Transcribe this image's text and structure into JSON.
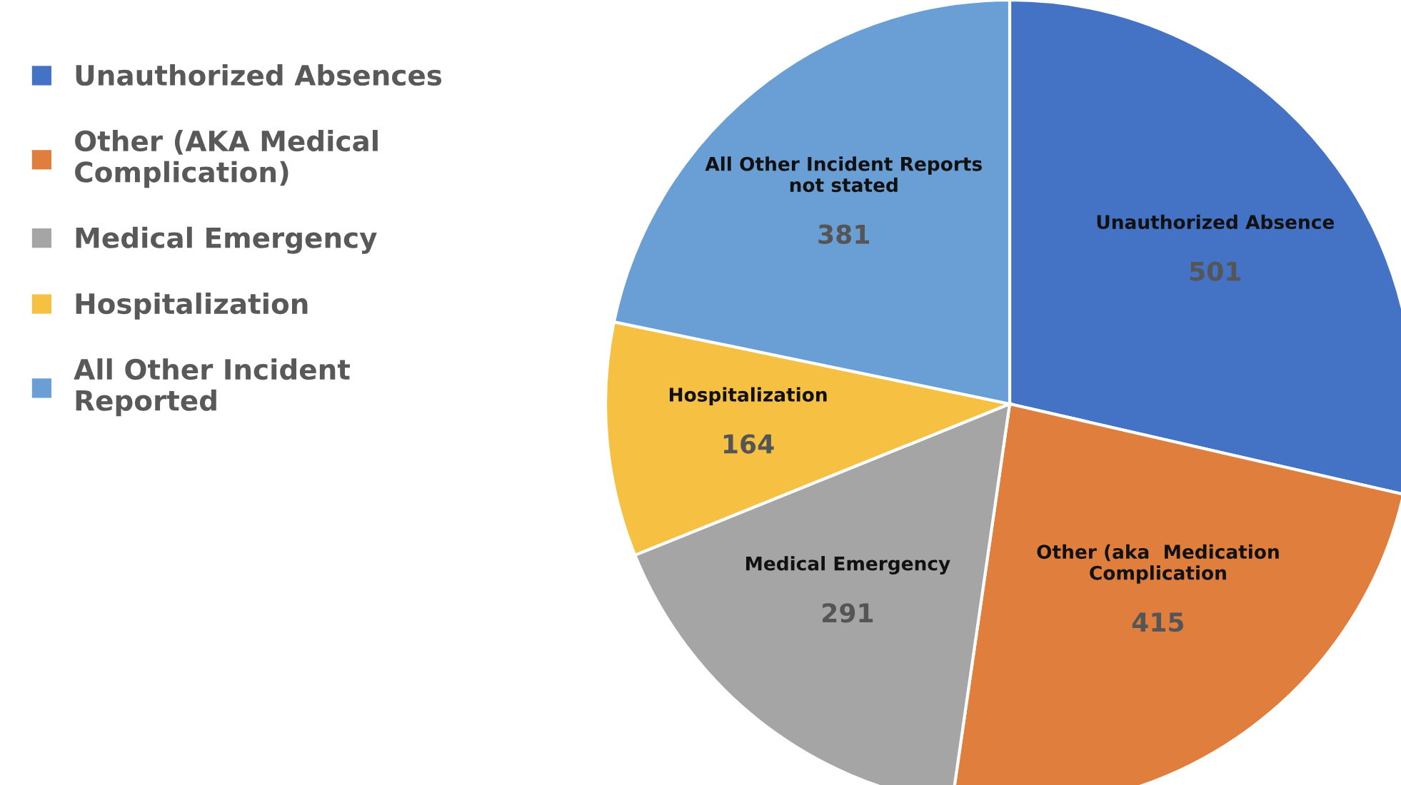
{
  "chart_data": {
    "type": "pie",
    "categories": [
      "Unauthorized Absences",
      "Other (AKA Medical\nComplication)",
      "Medical Emergency",
      "Hospitalization",
      "All Other Incident\nReported"
    ],
    "values": [
      501,
      415,
      291,
      164,
      381
    ],
    "colors": [
      "#4472c4",
      "#e07f3d",
      "#a5a5a5",
      "#f6c143",
      "#6a9fd6"
    ],
    "data_labels": true,
    "annotations": [
      "Unauthorized Absence",
      "Other (aka  Medication\nComplication",
      "Medical Emergency",
      "Hospitalization",
      "All Other Incident Reports\nnot stated"
    ],
    "legend": "left"
  }
}
